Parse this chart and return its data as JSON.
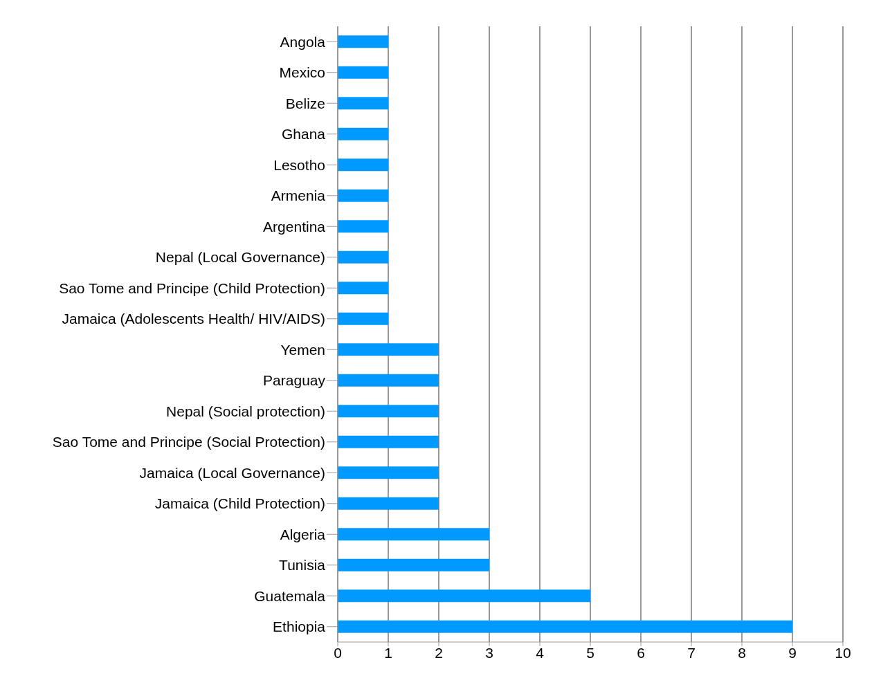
{
  "chart_data": {
    "type": "bar",
    "orientation": "horizontal",
    "categories": [
      "Angola",
      "Mexico",
      "Belize",
      "Ghana",
      "Lesotho",
      "Armenia",
      "Argentina",
      "Nepal (Local Governance)",
      "Sao Tome and Principe (Child Protection)",
      "Jamaica (Adolescents Health/ HIV/AIDS)",
      "Yemen",
      "Paraguay",
      "Nepal (Social protection)",
      "Sao Tome and Principe (Social Protection)",
      "Jamaica (Local Governance)",
      "Jamaica (Child Protection)",
      "Algeria",
      "Tunisia",
      "Guatemala",
      "Ethiopia"
    ],
    "values": [
      1,
      1,
      1,
      1,
      1,
      1,
      1,
      1,
      1,
      1,
      2,
      2,
      2,
      2,
      2,
      2,
      3,
      3,
      5,
      9
    ],
    "color": "#0099ff",
    "xlim": [
      0,
      10
    ],
    "xticks": [
      0,
      1,
      2,
      3,
      4,
      5,
      6,
      7,
      8,
      9,
      10
    ],
    "grid": "x",
    "legend": false
  }
}
